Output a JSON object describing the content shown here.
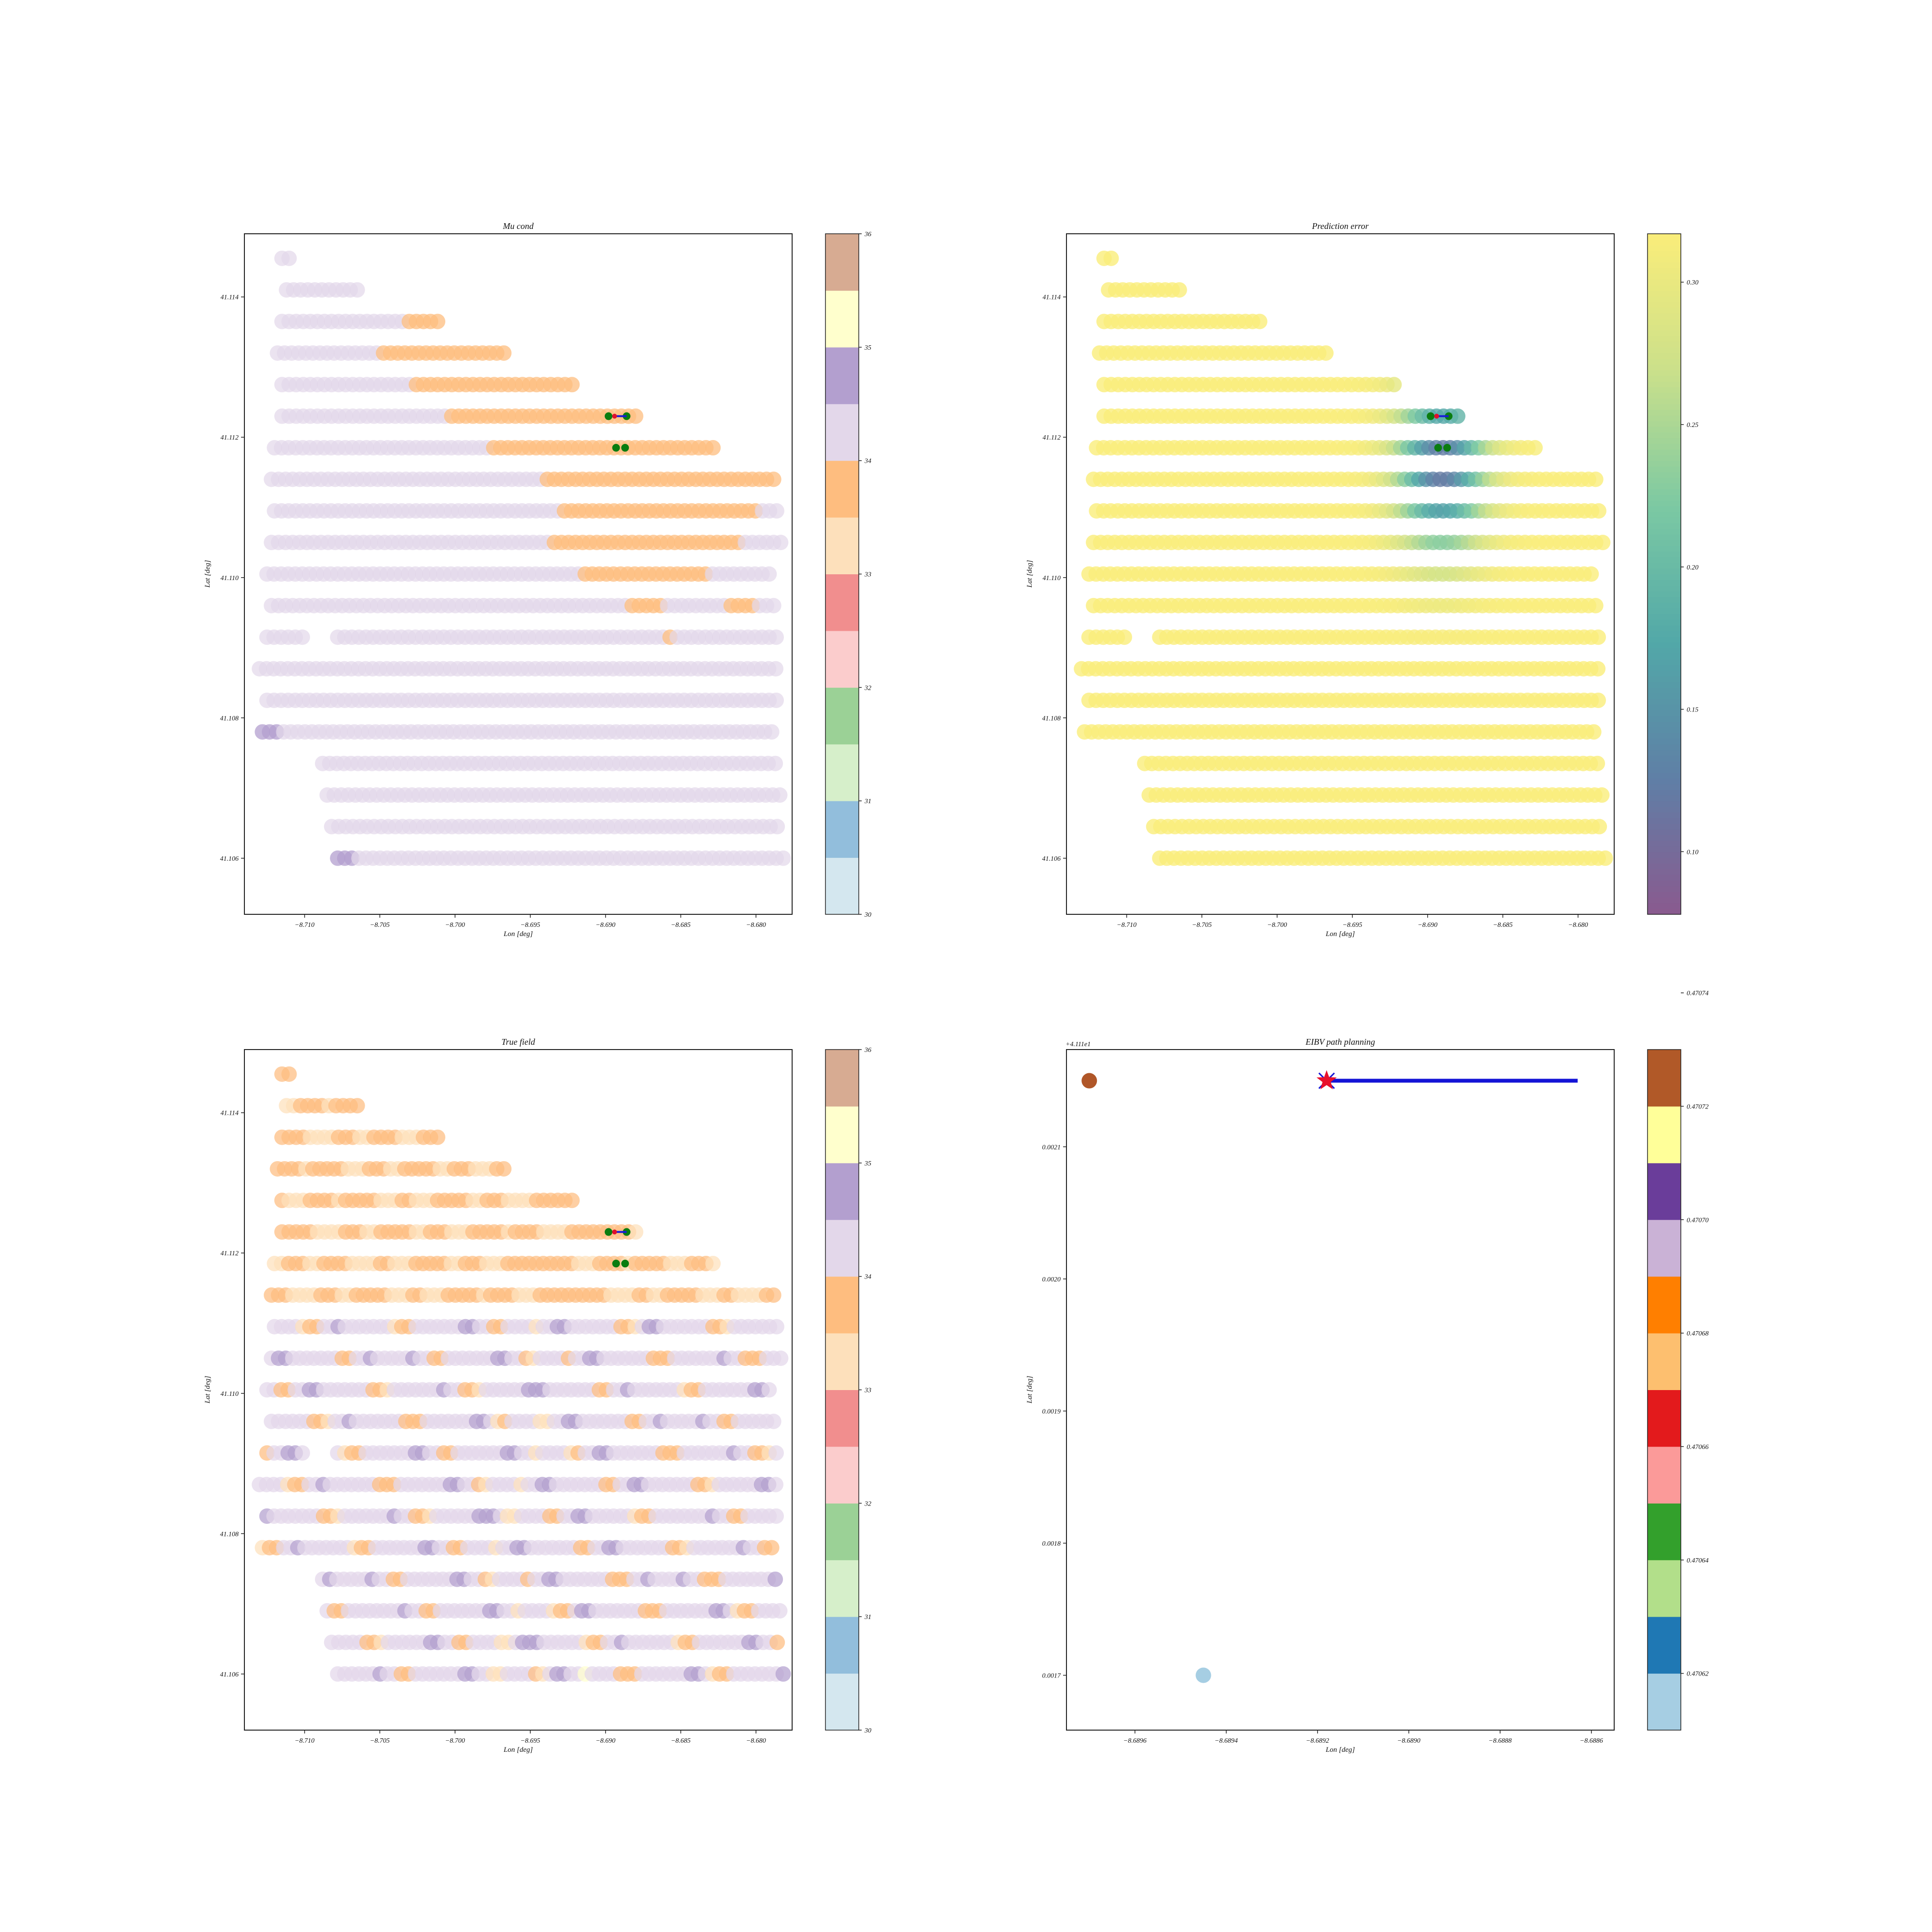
{
  "chart_data": [
    {
      "type": "scatter",
      "title": "Mu cond",
      "xlabel": "Lon [deg]",
      "ylabel": "Lat [deg]",
      "xlim": [
        -8.714,
        -8.6776
      ],
      "ylim": [
        41.1052,
        41.1149
      ],
      "xticks": [
        "−8.710",
        "−8.705",
        "−8.700",
        "−8.695",
        "−8.690",
        "−8.685",
        "−8.680"
      ],
      "yticks": [
        "41.106",
        "41.108",
        "41.110",
        "41.112",
        "41.114"
      ],
      "colorbar": {
        "ticks": [
          "30",
          "31",
          "32",
          "33",
          "34",
          "35",
          "36"
        ],
        "colors": [
          "#d4e7ef",
          "#92bedc",
          "#d6efca",
          "#9bd196",
          "#fbcccc",
          "#f18e8e",
          "#fde0bb",
          "#febd7f",
          "#e3d7ea",
          "#b39fcf",
          "#ffffcd",
          "#d7ab92"
        ]
      },
      "rows": [
        {
          "lat": 41.11455,
          "lon": [
            -8.7115,
            -8.7107
          ],
          "cls": [
            8,
            8
          ]
        },
        {
          "lat": 41.1141,
          "lon": [
            -8.7112,
            -8.7062
          ],
          "cls": [
            [
              0,
              8
            ]
          ]
        },
        {
          "lat": 41.11365,
          "lon": [
            -8.7115,
            -8.701
          ],
          "cls": [
            [
              0,
              8
            ],
            [
              0.8,
              7
            ]
          ]
        },
        {
          "lat": 41.1132,
          "lon": [
            -8.7118,
            -8.6965
          ],
          "cls": [
            [
              0,
              8
            ],
            [
              0.44,
              7
            ]
          ]
        },
        {
          "lat": 41.11275,
          "lon": [
            -8.7115,
            -8.692
          ],
          "cls": [
            [
              0,
              8
            ],
            [
              0.45,
              7
            ]
          ]
        },
        {
          "lat": 41.1123,
          "lon": [
            -8.7115,
            -8.6878
          ],
          "cls": [
            [
              0,
              8
            ],
            [
              0.47,
              7
            ],
            [
              0.8,
              7
            ]
          ]
        },
        {
          "lat": 41.11185,
          "lon": [
            -8.712,
            -8.6828
          ],
          "cls": [
            [
              0,
              8
            ],
            [
              0.49,
              7
            ]
          ]
        },
        {
          "lat": 41.1114,
          "lon": [
            -8.7122,
            -8.6788
          ],
          "cls": [
            [
              0,
              8
            ],
            [
              0.54,
              7
            ]
          ]
        },
        {
          "lat": 41.11095,
          "lon": [
            -8.712,
            -8.6785
          ],
          "cls": [
            [
              0,
              8
            ],
            [
              0.57,
              7
            ],
            [
              0.96,
              8
            ]
          ]
        },
        {
          "lat": 41.1105,
          "lon": [
            -8.7122,
            -8.6782
          ],
          "cls": [
            [
              0,
              8
            ],
            [
              0.55,
              7
            ],
            [
              0.92,
              8
            ]
          ]
        },
        {
          "lat": 41.11005,
          "lon": [
            -8.7125,
            -8.6788
          ],
          "cls": [
            [
              0,
              8
            ],
            [
              0.62,
              7
            ],
            [
              0.87,
              8
            ]
          ]
        },
        {
          "lat": 41.1096,
          "lon": [
            -8.7122,
            -8.6785
          ],
          "cls": [
            [
              0,
              8
            ],
            [
              0.7,
              7
            ],
            [
              0.78,
              8
            ],
            [
              0.9,
              7
            ],
            [
              0.96,
              8
            ]
          ]
        },
        {
          "lat": 41.10915,
          "lon": [
            -8.7125,
            -8.6785
          ],
          "cls": [
            [
              0,
              8
            ],
            [
              0.78,
              7
            ],
            [
              0.8,
              8
            ]
          ],
          "gap": [
            0.07,
            0.13
          ]
        },
        {
          "lat": 41.1087,
          "lon": [
            -8.713,
            -8.6785
          ],
          "cls": [
            [
              0,
              8
            ]
          ]
        },
        {
          "lat": 41.10825,
          "lon": [
            -8.7125,
            -8.6782
          ],
          "cls": [
            [
              0,
              8
            ]
          ]
        },
        {
          "lat": 41.1078,
          "lon": [
            -8.7128,
            -8.6785
          ],
          "cls": [
            [
              0,
              9
            ],
            [
              0.04,
              8
            ]
          ]
        },
        {
          "lat": 41.10735,
          "lon": [
            -8.7088,
            -8.6785
          ],
          "cls": [
            [
              0,
              8
            ]
          ]
        },
        {
          "lat": 41.1069,
          "lon": [
            -8.7085,
            -8.678
          ],
          "cls": [
            [
              0,
              8
            ]
          ]
        },
        {
          "lat": 41.10645,
          "lon": [
            -8.7082,
            -8.6782
          ],
          "cls": [
            [
              0,
              8
            ]
          ]
        },
        {
          "lat": 41.106,
          "lon": [
            -8.7078,
            -8.678
          ],
          "cls": [
            [
              0,
              9
            ],
            [
              0.04,
              8
            ]
          ]
        }
      ],
      "markers": {
        "green_dots": [
          [
            -8.6898,
            41.1123
          ],
          [
            -8.6886,
            41.1123
          ],
          [
            -8.6893,
            41.11185
          ],
          [
            -8.6887,
            41.11185
          ]
        ],
        "path": [
          [
            -8.6894,
            41.1123
          ],
          [
            -8.6886,
            41.1123
          ]
        ]
      }
    },
    {
      "type": "scatter",
      "title": "Prediction error",
      "xlabel": "Lon [deg]",
      "ylabel": "Lat [deg]",
      "xlim": [
        -8.714,
        -8.6776
      ],
      "ylim": [
        41.1052,
        41.1149
      ],
      "xticks": [
        "−8.710",
        "−8.705",
        "−8.700",
        "−8.695",
        "−8.690",
        "−8.685",
        "−8.680"
      ],
      "yticks": [
        "41.106",
        "41.108",
        "41.110",
        "41.112",
        "41.114"
      ],
      "colorbar": {
        "range": [
          0.078,
          0.317
        ],
        "ticks": [
          "0.10",
          "0.15",
          "0.20",
          "0.25",
          "0.30"
        ],
        "tick_values": [
          0.1,
          0.15,
          0.2,
          0.25,
          0.3
        ],
        "gradient": [
          "#8a5a8f",
          "#5f7fa6",
          "#52a8a8",
          "#7cc9a3",
          "#cbe08a",
          "#faed7a"
        ]
      },
      "low_error_center_lon": -8.689,
      "low_error_center_lat": 41.1116
    },
    {
      "type": "scatter",
      "title": "True field",
      "xlabel": "Lon [deg]",
      "ylabel": "Lat [deg]",
      "xlim": [
        -8.714,
        -8.6776
      ],
      "ylim": [
        41.1052,
        41.1149
      ],
      "xticks": [
        "−8.710",
        "−8.705",
        "−8.700",
        "−8.695",
        "−8.690",
        "−8.685",
        "−8.680"
      ],
      "yticks": [
        "41.106",
        "41.108",
        "41.110",
        "41.112",
        "41.114"
      ],
      "colorbar": {
        "ticks": [
          "30",
          "31",
          "32",
          "33",
          "34",
          "35",
          "36"
        ],
        "colors": [
          "#d4e7ef",
          "#92bedc",
          "#d6efca",
          "#9bd196",
          "#fbcccc",
          "#f18e8e",
          "#fde0bb",
          "#febd7f",
          "#e3d7ea",
          "#b39fcf",
          "#ffffcd",
          "#d7ab92"
        ]
      }
    },
    {
      "type": "scatter",
      "title": "EIBV path planning",
      "xlabel": "Lon [deg]",
      "ylabel": "Lat [deg]",
      "offset_text": "+4.111e1",
      "xlim": [
        -8.68975,
        -8.68855
      ],
      "ylim": [
        0.0016585,
        0.0021736
      ],
      "xticks": [
        "−8.6896",
        "−8.6894",
        "−8.6892",
        "−8.6890",
        "−8.6888",
        "−8.6886"
      ],
      "xtick_values": [
        -8.6896,
        -8.6894,
        -8.6892,
        -8.689,
        -8.6888,
        -8.6886
      ],
      "yticks": [
        "0.0017",
        "0.0018",
        "0.0019",
        "0.0020",
        "0.0021"
      ],
      "ytick_values": [
        0.0017,
        0.0018,
        0.0019,
        0.002,
        0.0021
      ],
      "points": [
        {
          "lon": -8.6897,
          "lat": 0.00215,
          "color": "#b05628"
        },
        {
          "lon": -8.68945,
          "lat": 0.0017,
          "color": "#a6cee3"
        }
      ],
      "path": [
        [
          -8.68918,
          0.00215
        ],
        [
          -8.68863,
          0.00215
        ]
      ],
      "star": [
        -8.68918,
        0.00215
      ],
      "colorbar": {
        "ticks": [
          "0.47062",
          "0.47064",
          "0.47066",
          "0.47068",
          "0.47070",
          "0.47072",
          "0.47074"
        ],
        "colors": [
          "#a6cee3",
          "#1f78b4",
          "#b2df8a",
          "#33a02c",
          "#fb9a99",
          "#e31a1c",
          "#fdbf6f",
          "#ff7f00",
          "#cab2d6",
          "#6a3d9a",
          "#ffff99",
          "#b15928"
        ]
      }
    }
  ]
}
